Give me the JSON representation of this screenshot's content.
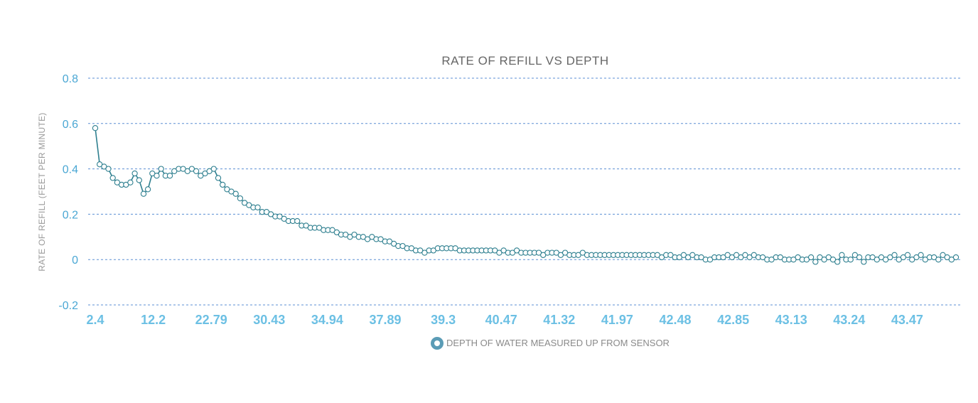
{
  "chart_data": {
    "type": "line",
    "title": "RATE OF REFILL VS DEPTH",
    "ylabel": "RATE OF REFILL (FEET PER MINUTE)",
    "xlabel": "",
    "ylim": [
      -0.2,
      0.8
    ],
    "yticks": [
      -0.2,
      0,
      0.2,
      0.4,
      0.6,
      0.8
    ],
    "ytick_labels": [
      "-0.2",
      "0",
      "0.2",
      "0.4",
      "0.6",
      "0.8"
    ],
    "x_tick_labels": [
      "2.4",
      "12.2",
      "22.79",
      "30.43",
      "34.94",
      "37.89",
      "39.3",
      "40.47",
      "41.32",
      "41.97",
      "42.48",
      "42.85",
      "43.13",
      "43.24",
      "43.47"
    ],
    "grid": true,
    "legend_position": "bottom-center",
    "series": [
      {
        "name": "DEPTH OF WATER MEASURED UP FROM SENSOR",
        "color": "#2e7f8f",
        "marker_fill": "#ffffff",
        "values": [
          0.58,
          0.42,
          0.41,
          0.4,
          0.36,
          0.34,
          0.33,
          0.33,
          0.34,
          0.38,
          0.35,
          0.29,
          0.31,
          0.38,
          0.37,
          0.4,
          0.37,
          0.37,
          0.39,
          0.4,
          0.4,
          0.39,
          0.4,
          0.39,
          0.37,
          0.38,
          0.39,
          0.4,
          0.36,
          0.33,
          0.31,
          0.3,
          0.29,
          0.27,
          0.25,
          0.24,
          0.23,
          0.23,
          0.21,
          0.21,
          0.2,
          0.19,
          0.19,
          0.18,
          0.17,
          0.17,
          0.17,
          0.15,
          0.15,
          0.14,
          0.14,
          0.14,
          0.13,
          0.13,
          0.13,
          0.12,
          0.11,
          0.11,
          0.1,
          0.11,
          0.1,
          0.1,
          0.09,
          0.1,
          0.09,
          0.09,
          0.08,
          0.08,
          0.07,
          0.06,
          0.06,
          0.05,
          0.05,
          0.04,
          0.04,
          0.03,
          0.04,
          0.04,
          0.05,
          0.05,
          0.05,
          0.05,
          0.05,
          0.04,
          0.04,
          0.04,
          0.04,
          0.04,
          0.04,
          0.04,
          0.04,
          0.04,
          0.03,
          0.04,
          0.03,
          0.03,
          0.04,
          0.03,
          0.03,
          0.03,
          0.03,
          0.03,
          0.02,
          0.03,
          0.03,
          0.03,
          0.02,
          0.03,
          0.02,
          0.02,
          0.02,
          0.03,
          0.02,
          0.02,
          0.02,
          0.02,
          0.02,
          0.02,
          0.02,
          0.02,
          0.02,
          0.02,
          0.02,
          0.02,
          0.02,
          0.02,
          0.02,
          0.02,
          0.02,
          0.01,
          0.02,
          0.02,
          0.01,
          0.01,
          0.02,
          0.01,
          0.02,
          0.01,
          0.01,
          0.0,
          0.0,
          0.01,
          0.01,
          0.01,
          0.02,
          0.01,
          0.02,
          0.01,
          0.02,
          0.01,
          0.02,
          0.01,
          0.01,
          0.0,
          0.0,
          0.01,
          0.01,
          0.0,
          0.0,
          0.0,
          0.01,
          0.0,
          0.0,
          0.01,
          -0.01,
          0.01,
          0.0,
          0.01,
          0.0,
          -0.01,
          0.02,
          0.0,
          0.0,
          0.02,
          0.01,
          -0.01,
          0.01,
          0.01,
          0.0,
          0.01,
          0.0,
          0.01,
          0.02,
          0.0,
          0.01,
          0.02,
          0.0,
          0.01,
          0.02,
          0.0,
          0.01,
          0.01,
          0.0,
          0.02,
          0.01,
          0.0,
          0.01
        ]
      }
    ]
  },
  "colors": {
    "grid": "#5b8fd4",
    "tick_y": "#4aa7d4",
    "tick_x": "#6cc0e4",
    "title": "#666666",
    "line": "#2e7f8f",
    "legend_ring": "#5b9cb6"
  }
}
